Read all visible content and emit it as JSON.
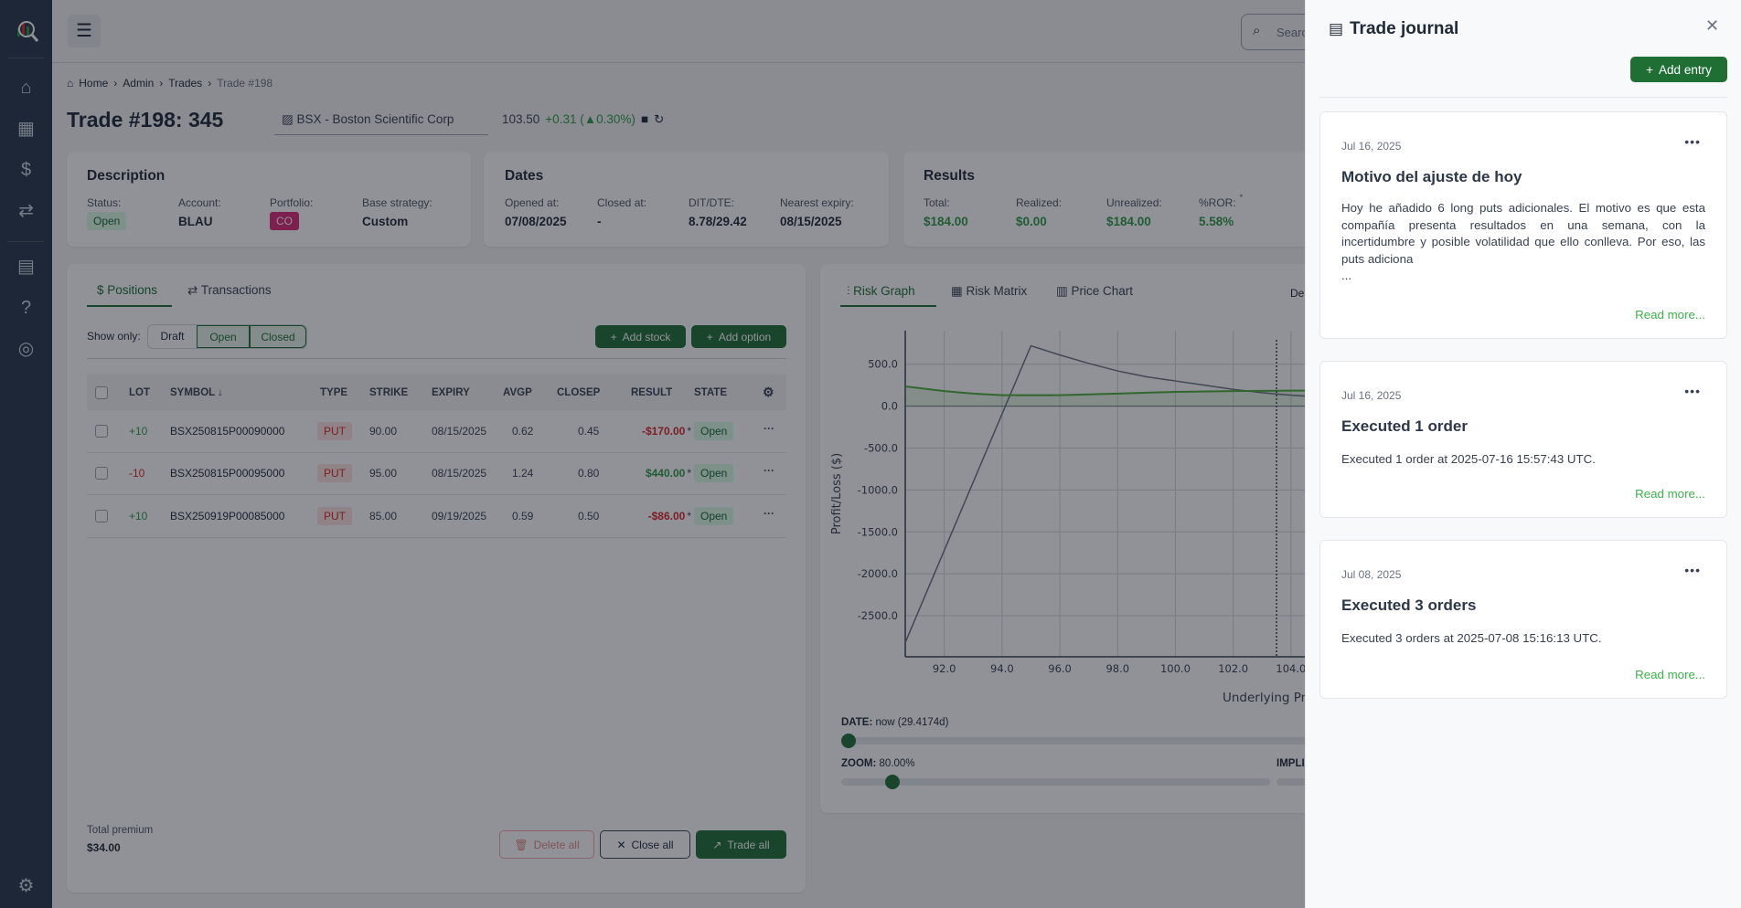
{
  "breadcrumb": [
    "Home",
    "Admin",
    "Trades",
    "Trade #198"
  ],
  "title": "Trade #198: 345",
  "symbol": {
    "name": "BSX - Boston Scientific Corp",
    "price": "103.50",
    "change": "+0.31 (▲0.30%)"
  },
  "search": {
    "placeholder": "Search"
  },
  "description": {
    "title": "Description",
    "status_label": "Status:",
    "status": "Open",
    "account_label": "Account:",
    "account": "BLAU",
    "portfolio_label": "Portfolio:",
    "portfolio": "CO",
    "strategy_label": "Base strategy:",
    "strategy": "Custom"
  },
  "dates": {
    "title": "Dates",
    "opened_label": "Opened at:",
    "opened": "07/08/2025",
    "closed_label": "Closed at:",
    "closed": "-",
    "dit_label": "DIT/DTE:",
    "dit": "8.78/29.42",
    "expiry_label": "Nearest expiry:",
    "expiry": "08/15/2025"
  },
  "results": {
    "title": "Results",
    "total_label": "Total:",
    "total": "$184.00",
    "realized_label": "Realized:",
    "realized": "$0.00",
    "unrealized_label": "Unrealized:",
    "unrealized": "$184.00",
    "ror_label": "%ROR:",
    "ror_mark": "*",
    "ror": "5.58%"
  },
  "positions": {
    "tabs": [
      "Positions",
      "Transactions"
    ],
    "show_only": "Show only:",
    "filters": [
      "Draft",
      "Open",
      "Closed"
    ],
    "add_stock": "Add stock",
    "add_option": "Add option",
    "columns": [
      "LOT",
      "SYMBOL ↓",
      "TYPE",
      "STRIKE",
      "EXPIRY",
      "AVGP",
      "CLOSEP",
      "RESULT",
      "STATE"
    ],
    "rows": [
      {
        "lot": "+10",
        "symbol": "BSX250815P00090000",
        "type": "PUT",
        "strike": "90.00",
        "expiry": "08/15/2025",
        "avgp": "0.62",
        "closep": "0.45",
        "result": "-$170.00",
        "mark": "*",
        "state": "Open"
      },
      {
        "lot": "-10",
        "symbol": "BSX250815P00095000",
        "type": "PUT",
        "strike": "95.00",
        "expiry": "08/15/2025",
        "avgp": "1.24",
        "closep": "0.80",
        "result": "$440.00",
        "mark": "*",
        "state": "Open"
      },
      {
        "lot": "+10",
        "symbol": "BSX250919P00085000",
        "type": "PUT",
        "strike": "85.00",
        "expiry": "09/19/2025",
        "avgp": "0.59",
        "closep": "0.50",
        "result": "-$86.00",
        "mark": "*",
        "state": "Open"
      }
    ],
    "total_premium_label": "Total premium",
    "total_premium": "$34.00",
    "delete_all": "Delete all",
    "close_all": "Close all",
    "trade_all": "Trade all"
  },
  "risk": {
    "tabs": [
      "Risk Graph",
      "Risk Matrix",
      "Price Chart"
    ],
    "cut_label": "Del",
    "date_label": "DATE:",
    "date_value": "now (29.4174d)",
    "date_slider": 0,
    "zoom_label": "ZOOM:",
    "zoom_value": "80.00%",
    "zoom_slider": 0.12,
    "implied_label": "IMPLI"
  },
  "chart_data": {
    "type": "line",
    "xlabel": "Underlying Pric",
    "ylabel": "Profit/Loss ($)",
    "xlim": [
      90.65,
      107
    ],
    "ylim": [
      -2990,
      900
    ],
    "xticks": [
      "92.0",
      "94.0",
      "96.0",
      "98.0",
      "100.0",
      "102.0",
      "104.0"
    ],
    "yticks": [
      "500.0",
      "0.0",
      "-500.0",
      "-1000.0",
      "-1500.0",
      "-2000.0",
      "-2500.0"
    ],
    "grid": true,
    "current_price": 103.5,
    "series": [
      {
        "color": "#6b7280",
        "x": [
          90.65,
          95,
          96,
          97,
          98,
          99,
          100,
          101,
          102,
          103,
          104,
          105
        ],
        "y": [
          -2820,
          720,
          610,
          510,
          420,
          350,
          300,
          250,
          200,
          160,
          130,
          110
        ]
      },
      {
        "color": "#4caf3a",
        "x": [
          90.65,
          92,
          93,
          94,
          96,
          98,
          100,
          102,
          104,
          105
        ],
        "y": [
          235,
          180,
          150,
          130,
          130,
          150,
          170,
          180,
          185,
          185
        ]
      }
    ]
  },
  "journal": {
    "title": "Trade journal",
    "add_entry": "Add entry",
    "read_more": "Read more...",
    "entries": [
      {
        "date": "Jul 16, 2025",
        "title": "Motivo del ajuste de hoy",
        "body": "Hoy he añadido 6 long puts adicionales. El motivo es que esta compañía presenta resultados en una semana, con la incertidumbre y posible volatilidad que ello conlleva. Por eso, las puts adiciona",
        "ellipsis": "..."
      },
      {
        "date": "Jul 16, 2025",
        "title": "Executed 1 order",
        "body": "Executed 1 order at 2025-07-16 15:57:43 UTC."
      },
      {
        "date": "Jul 08, 2025",
        "title": "Executed 3 orders",
        "body": "Executed 3 orders at 2025-07-08 15:16:13 UTC."
      }
    ]
  }
}
